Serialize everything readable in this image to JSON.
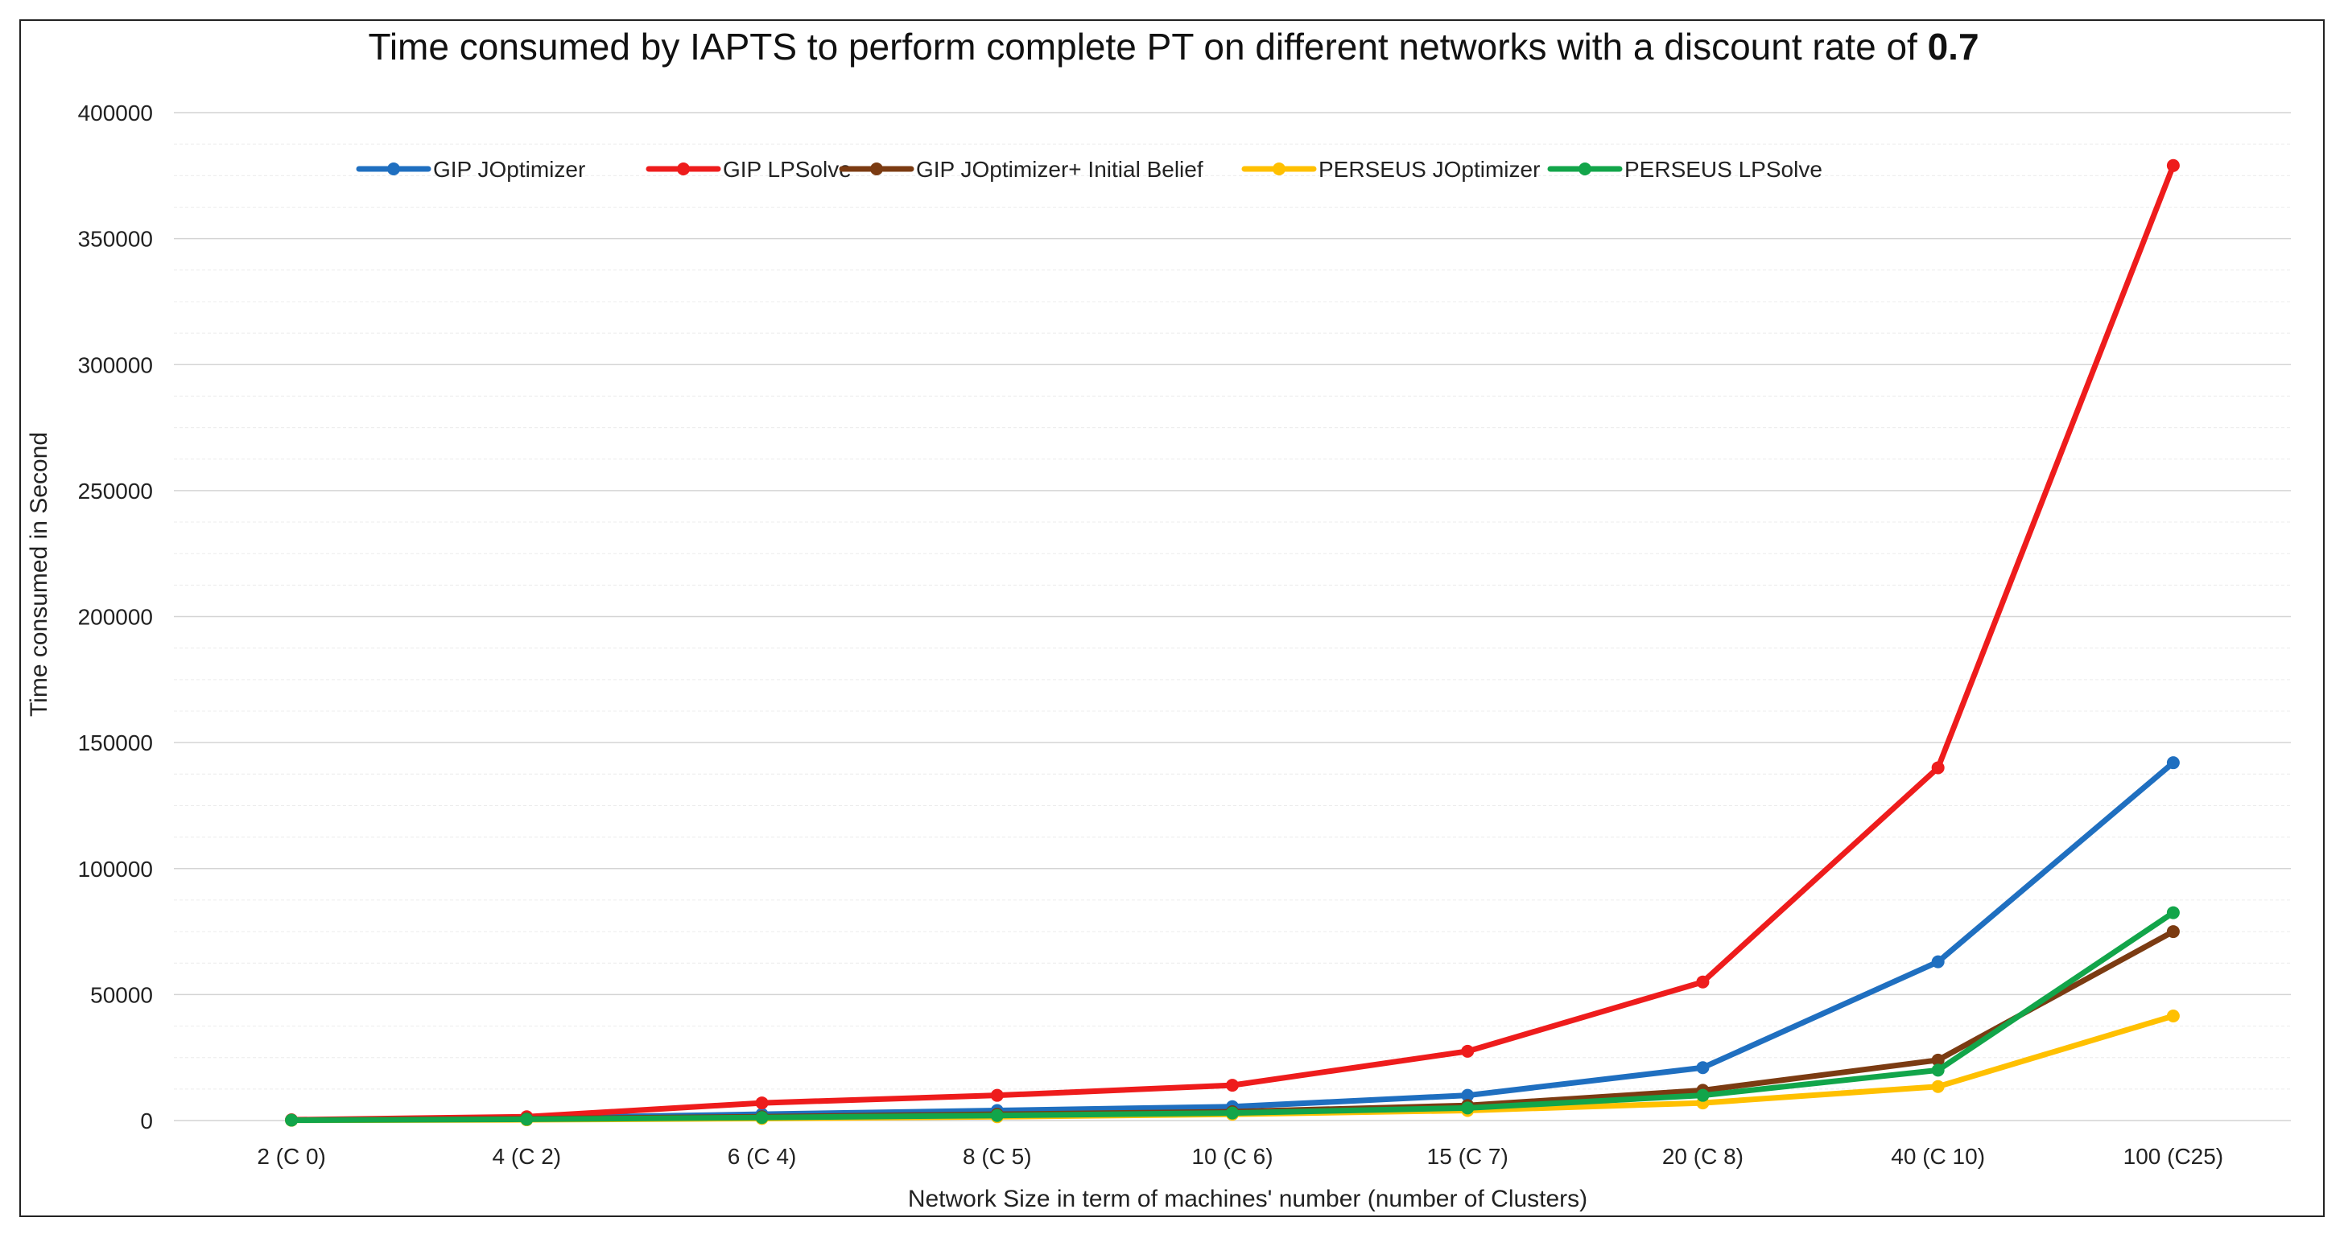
{
  "chart_data": {
    "type": "line",
    "title": "Time consumed by IAPTS to perform complete PT on different networks with a discount rate of",
    "title_bold": "0.7",
    "xlabel": "Network Size in term of machines' number  (number of Clusters)",
    "ylabel": "Time consumed in Second",
    "ylim": [
      0,
      400000
    ],
    "yticks": [
      0,
      50000,
      100000,
      150000,
      200000,
      250000,
      300000,
      350000,
      400000
    ],
    "grid": true,
    "legend_position": "top",
    "categories": [
      "2 (C 0)",
      "4 (C 2)",
      "6 (C 4)",
      "8 (C 5)",
      "10 (C 6)",
      "15 (C 7)",
      "20 (C 8)",
      "40 (C 10)",
      "100 (C25)"
    ],
    "series": [
      {
        "name": "GIP JOptimizer",
        "color": "#1f6fc0",
        "values": [
          200,
          1000,
          2500,
          4000,
          5500,
          10000,
          21000,
          63000,
          142000
        ]
      },
      {
        "name": "GIP LPSolve",
        "color": "#ee1c1c",
        "values": [
          300,
          1500,
          7000,
          10000,
          14000,
          27500,
          55000,
          140000,
          379000
        ]
      },
      {
        "name": "GIP JOptimizer+ Initial Belief",
        "color": "#7b3b12",
        "values": [
          150,
          700,
          1500,
          2500,
          3500,
          6000,
          12000,
          24000,
          75000
        ]
      },
      {
        "name": "PERSEUS JOptimizer",
        "color": "#ffc000",
        "values": [
          100,
          300,
          800,
          1500,
          2500,
          4000,
          7000,
          13500,
          41500
        ]
      },
      {
        "name": "PERSEUS LPSolve",
        "color": "#12a54a",
        "values": [
          150,
          500,
          1200,
          2000,
          3000,
          5000,
          10000,
          20000,
          82500
        ]
      }
    ]
  }
}
